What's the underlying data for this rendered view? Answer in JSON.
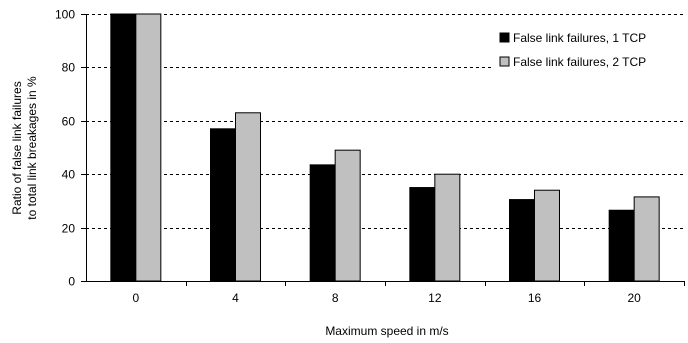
{
  "chart_data": {
    "type": "bar",
    "title": "",
    "xlabel": "Maximum speed in m/s",
    "ylabel_lines": [
      "Ratio of false link failures",
      "to total link breakages in %"
    ],
    "categories": [
      "0",
      "4",
      "8",
      "12",
      "16",
      "20"
    ],
    "series": [
      {
        "name": "False link failures, 1 TCP",
        "color": "#000000",
        "values": [
          100,
          57,
          43.5,
          35,
          30.5,
          26.5
        ]
      },
      {
        "name": "False link failures, 2 TCP",
        "color": "#c0c0c0",
        "values": [
          100,
          63,
          49,
          40,
          34,
          31.5
        ]
      }
    ],
    "ylim": [
      0,
      100
    ],
    "yticks": [
      0,
      20,
      40,
      60,
      80,
      100
    ],
    "grid": "horizontal dashed",
    "legend_position": "top-right"
  }
}
